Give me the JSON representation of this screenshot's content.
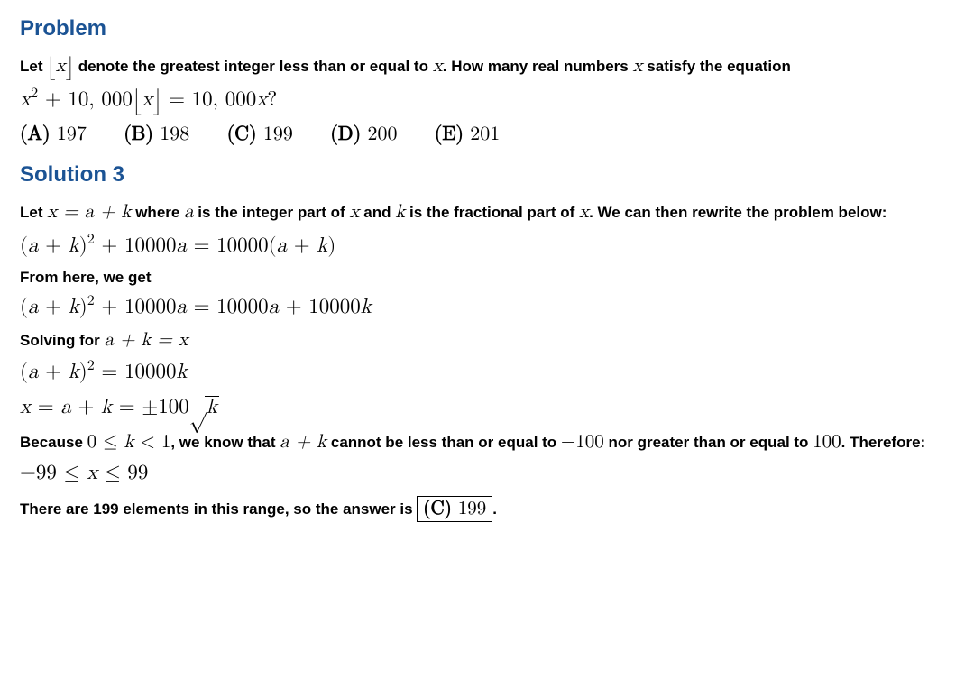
{
  "headings": {
    "problem": "Problem",
    "solution": "Solution 3"
  },
  "problem": {
    "intro_pre": "Let ",
    "intro_mid": " denote the greatest integer less than or equal to ",
    "intro_post": ". How many real numbers ",
    "intro_tail": " satisfy the equation",
    "floor_x": "⌊x⌋",
    "var_x": "x",
    "eq_lhs": "x",
    "eq_exp": "2",
    "eq_plus": " + 10, 000",
    "eq_floor_x": "⌊x⌋",
    "eq_eq": " = 10, 000",
    "eq_rhs_var": "x",
    "eq_q": "?"
  },
  "choices": {
    "A": "(A) 197",
    "B": "(B) 198",
    "C": "(C) 199",
    "D": "(D) 200",
    "E": "(E) 201"
  },
  "sol": {
    "p1_a": "Let ",
    "p1_expr": "x = a + k",
    "p1_b": " where ",
    "p1_c": "a",
    "p1_d": " is the integer part of ",
    "p1_e": "x",
    "p1_f": " and ",
    "p1_g": "k",
    "p1_h": " is the fractional part of ",
    "p1_i": "x",
    "p1_j": ". We can then rewrite the problem below:",
    "eq1": "(a + k)",
    "eq1_exp": "2",
    "eq1_b": " + 10000a = 10000(a + k)",
    "p2": "From here, we get",
    "eq2": "(a + k)",
    "eq2_exp": "2",
    "eq2_b": " + 10000a = 10000a + 10000k",
    "p3_a": "Solving for ",
    "p3_b": "a + k = x",
    "eq3": "(a + k)",
    "eq3_exp": "2",
    "eq3_b": " = 10000k",
    "eq4_a": "x = a + k = ±100",
    "eq4_rad": "√",
    "eq4_k": "k",
    "p4_a": "Because ",
    "p4_b": "0 ≤ k < 1",
    "p4_c": ", we know that ",
    "p4_d": "a + k",
    "p4_e": " cannot be less than or equal to ",
    "p4_f": "−100",
    "p4_g": " nor greater than or equal to ",
    "p4_h": "100",
    "p4_i": ". Therefore:",
    "eq5": "−99 ≤ x ≤ 99",
    "p5_a": "There are 199 elements in this range, so the answer is ",
    "p5_box": "(C) 199",
    "p5_b": "."
  }
}
